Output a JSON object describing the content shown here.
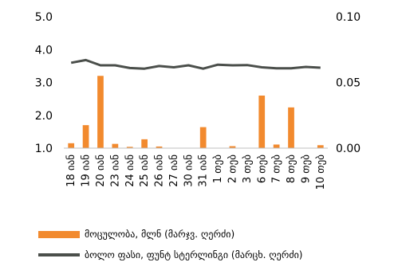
{
  "chart_data": {
    "type": "bar",
    "categories": [
      "18 იან",
      "19 იან",
      "20 იან",
      "23 იან",
      "24 იან",
      "25 იან",
      "26 იან",
      "27 იან",
      "30 იან",
      "31 იან",
      "1 თებ",
      "2 თებ",
      "3 თებ",
      "6 თებ",
      "7 თებ",
      "8 თებ",
      "9 თებ",
      "10 თებ"
    ],
    "series": [
      {
        "name": "მოცულობა, მლნ (მარჯვ. ღერძი)",
        "type": "bar",
        "axis": "left",
        "color": "#F28A2E",
        "values": [
          1.15,
          1.7,
          3.2,
          1.13,
          1.04,
          1.27,
          1.05,
          1.0,
          1.0,
          1.64,
          1.0,
          1.06,
          1.0,
          2.6,
          1.11,
          2.24,
          1.0,
          1.09
        ]
      },
      {
        "name": "ბოლო ფასი, ფუნტ სტერლინგი (მარცხ. ღერძი)",
        "type": "line",
        "axis": "right",
        "color": "#4B4F4B",
        "values": [
          0.065,
          0.067,
          0.063,
          0.063,
          0.061,
          0.0605,
          0.0625,
          0.0615,
          0.063,
          0.0605,
          0.0635,
          0.063,
          0.0632,
          0.0615,
          0.0608,
          0.0608,
          0.0618,
          0.0612
        ]
      }
    ],
    "y_left": {
      "min": 1.0,
      "max": 5.0,
      "ticks": [
        "1.0",
        "2.0",
        "3.0",
        "4.0",
        "5.0"
      ]
    },
    "y_right": {
      "min": 0.0,
      "max": 0.1,
      "ticks": [
        "0.00",
        "0.05",
        "0.10"
      ]
    },
    "grid": false,
    "legend_position": "bottom"
  }
}
